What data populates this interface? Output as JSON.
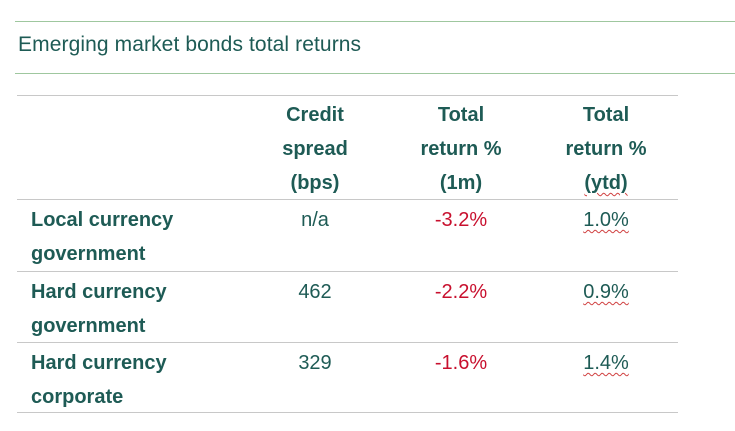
{
  "title": "Emerging market bonds total returns",
  "columns": [
    {
      "lines": [
        "Credit",
        "spread",
        "(bps)"
      ]
    },
    {
      "lines": [
        "Total",
        "return %",
        "(1m)"
      ]
    },
    {
      "lines": [
        "Total",
        "return %",
        "(ytd)"
      ]
    }
  ],
  "rows": [
    {
      "label_lines": [
        "Local currency",
        "government"
      ],
      "spread": "n/a",
      "return_1m": "-3.2%",
      "return_ytd": "1.0%"
    },
    {
      "label_lines": [
        "Hard currency",
        "government"
      ],
      "spread": "462",
      "return_1m": "-2.2%",
      "return_ytd": "0.9%"
    },
    {
      "label_lines": [
        "Hard currency",
        "corporate"
      ],
      "spread": "329",
      "return_1m": "-1.6%",
      "return_ytd": "1.4%"
    }
  ],
  "colors": {
    "text_dark_green": "#1e5b55",
    "negative_red": "#c8102e",
    "rule_green": "#9fc79f",
    "rule_grey": "#c8c8c8"
  }
}
